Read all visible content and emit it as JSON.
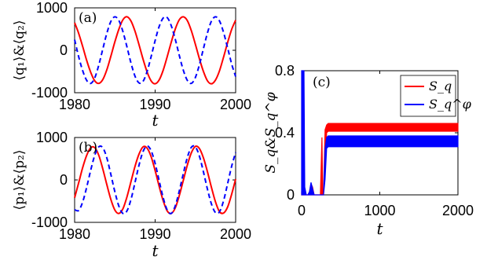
{
  "chart_data": [
    {
      "type": "line",
      "panel_label": "(a)",
      "xlabel": "t",
      "ylabel": "⟨q₁⟩&⟨q₂⟩",
      "xlim": [
        1980,
        2000
      ],
      "ylim": [
        -1000,
        1000
      ],
      "xticks": [
        "1980",
        "1990",
        "2000"
      ],
      "yticks": [
        "1000",
        "0",
        "-1000"
      ],
      "series": [
        {
          "style": "solid",
          "color": "#ff0000",
          "x": [
            1980,
            1980.5,
            1981,
            1981.5,
            1982,
            1982.5,
            1983,
            1983.5,
            1984,
            1984.5,
            1985,
            1985.5,
            1986,
            1986.5,
            1987,
            1987.5,
            1988,
            1988.5,
            1989,
            1989.5,
            1990,
            1990.5,
            1991,
            1991.5,
            1992,
            1992.5,
            1993,
            1993.5,
            1994,
            1994.5,
            1995,
            1995.5,
            1996,
            1996.5,
            1997,
            1997.5,
            1998,
            1998.5,
            1999,
            1999.5,
            2000
          ],
          "y": [
            650,
            400,
            90,
            -240,
            -520,
            -720,
            -780,
            -690,
            -460,
            -140,
            200,
            500,
            720,
            790,
            690,
            450,
            130,
            -210,
            -510,
            -720,
            -790,
            -700,
            -470,
            -150,
            190,
            500,
            720,
            790,
            700,
            460,
            140,
            -200,
            -500,
            -720,
            -790,
            -700,
            -480,
            -160,
            180,
            490,
            710
          ]
        },
        {
          "style": "dashed",
          "color": "#0000ff",
          "x": [
            1980,
            1980.5,
            1981,
            1981.5,
            1982,
            1982.5,
            1983,
            1983.5,
            1984,
            1984.5,
            1985,
            1985.5,
            1986,
            1986.5,
            1987,
            1987.5,
            1988,
            1988.5,
            1989,
            1989.5,
            1990,
            1990.5,
            1991,
            1991.5,
            1992,
            1992.5,
            1993,
            1993.5,
            1994,
            1994.5,
            1995,
            1995.5,
            1996,
            1996.5,
            1997,
            1997.5,
            1998,
            1998.5,
            1999,
            1999.5,
            2000
          ],
          "y": [
            250,
            -150,
            -480,
            -710,
            -780,
            -650,
            -350,
            30,
            400,
            680,
            790,
            700,
            440,
            80,
            -300,
            -610,
            -770,
            -730,
            -500,
            -150,
            230,
            560,
            760,
            770,
            580,
            260,
            -120,
            -470,
            -710,
            -780,
            -640,
            -340,
            40,
            410,
            690,
            790,
            690,
            420,
            60,
            -320,
            -620
          ]
        }
      ]
    },
    {
      "type": "line",
      "panel_label": "(b)",
      "xlabel": "t",
      "ylabel": "⟨p₁⟩&⟨p₂⟩",
      "xlim": [
        1980,
        2000
      ],
      "ylim": [
        -1000,
        1000
      ],
      "xticks": [
        "1980",
        "1990",
        "2000"
      ],
      "yticks": [
        "1000",
        "0",
        "-1000"
      ],
      "series": [
        {
          "style": "solid",
          "color": "#ff0000",
          "x": [
            1980,
            1980.5,
            1981,
            1981.5,
            1982,
            1982.5,
            1983,
            1983.5,
            1984,
            1984.5,
            1985,
            1985.5,
            1986,
            1986.5,
            1987,
            1987.5,
            1988,
            1988.5,
            1989,
            1989.5,
            1990,
            1990.5,
            1991,
            1991.5,
            1992,
            1992.5,
            1993,
            1993.5,
            1994,
            1994.5,
            1995,
            1995.5,
            1996,
            1996.5,
            1997,
            1997.5,
            1998,
            1998.5,
            1999,
            1999.5,
            2000
          ],
          "y": [
            -420,
            -70,
            290,
            580,
            760,
            760,
            580,
            260,
            -110,
            -460,
            -710,
            -790,
            -680,
            -400,
            -40,
            320,
            610,
            780,
            750,
            550,
            220,
            -150,
            -490,
            -730,
            -790,
            -660,
            -370,
            -10,
            350,
            640,
            790,
            740,
            520,
            190,
            -180,
            -520,
            -750,
            -780,
            -640,
            -340,
            20
          ]
        },
        {
          "style": "dashed",
          "color": "#0000ff",
          "x": [
            1980,
            1980.5,
            1981,
            1981.5,
            1982,
            1982.5,
            1983,
            1983.5,
            1984,
            1984.5,
            1985,
            1985.5,
            1986,
            1986.5,
            1987,
            1987.5,
            1988,
            1988.5,
            1989,
            1989.5,
            1990,
            1990.5,
            1991,
            1991.5,
            1992,
            1992.5,
            1993,
            1993.5,
            1994,
            1994.5,
            1995,
            1995.5,
            1996,
            1996.5,
            1997,
            1997.5,
            1998,
            1998.5,
            1999,
            1999.5,
            2000
          ],
          "y": [
            -700,
            -720,
            -520,
            -170,
            230,
            580,
            780,
            760,
            520,
            130,
            -280,
            -620,
            -790,
            -730,
            -460,
            -60,
            350,
            670,
            800,
            690,
            390,
            -20,
            -420,
            -710,
            -790,
            -610,
            -260,
            150,
            530,
            770,
            780,
            560,
            190,
            -220,
            -570,
            -770,
            -750,
            -490,
            -90,
            320,
            650
          ]
        }
      ]
    },
    {
      "type": "area",
      "panel_label": "(c)",
      "xlabel": "t",
      "ylabel": "S_q&S_q^φ",
      "xlim": [
        0,
        2000
      ],
      "ylim": [
        0,
        0.8
      ],
      "xticks": [
        "0",
        "1000",
        "2000"
      ],
      "yticks": [
        "0.8",
        "0.4",
        "0"
      ],
      "legend": "top-right",
      "series": [
        {
          "name": "S_q",
          "color": "#ff0000",
          "x": [
            0,
            20,
            40,
            60,
            80,
            100,
            120,
            140,
            160,
            180,
            200,
            220,
            240,
            260,
            270,
            280,
            300,
            320,
            340,
            360,
            380,
            400,
            600,
            1000,
            1500,
            2000
          ],
          "min": [
            0,
            0,
            0,
            0,
            0,
            0,
            0,
            0,
            0,
            0,
            0,
            0,
            0,
            0,
            0,
            0,
            0.2,
            0.4,
            0.41,
            0.41,
            0.41,
            0.41,
            0.41,
            0.41,
            0.41,
            0.41
          ],
          "max": [
            0.02,
            0.02,
            0.0,
            0.0,
            0.0,
            0.02,
            0.07,
            0.05,
            0.0,
            0.0,
            0.0,
            0.0,
            0.0,
            0.37,
            0.0,
            0.0,
            0.42,
            0.45,
            0.46,
            0.46,
            0.46,
            0.46,
            0.46,
            0.46,
            0.46,
            0.46
          ]
        },
        {
          "name": "S_q^φ",
          "color": "#0000ff",
          "x": [
            0,
            10,
            20,
            30,
            40,
            60,
            80,
            100,
            120,
            140,
            160,
            180,
            200,
            220,
            240,
            260,
            280,
            300,
            320,
            340,
            360,
            380,
            400,
            600,
            1000,
            1500,
            2000
          ],
          "min": [
            0,
            0,
            0,
            0,
            0,
            0,
            0,
            0,
            0,
            0,
            0,
            0,
            0,
            0,
            0,
            0,
            0,
            0.1,
            0.3,
            0.31,
            0.31,
            0.31,
            0.31,
            0.31,
            0.31,
            0.31,
            0.31
          ],
          "max": [
            0.8,
            0.8,
            0.8,
            0.8,
            0.05,
            0.0,
            0.0,
            0.02,
            0.08,
            0.04,
            0.0,
            0.0,
            0.0,
            0.0,
            0.0,
            0.0,
            0.0,
            0.3,
            0.37,
            0.38,
            0.38,
            0.38,
            0.38,
            0.38,
            0.38,
            0.38,
            0.38
          ]
        }
      ]
    }
  ]
}
